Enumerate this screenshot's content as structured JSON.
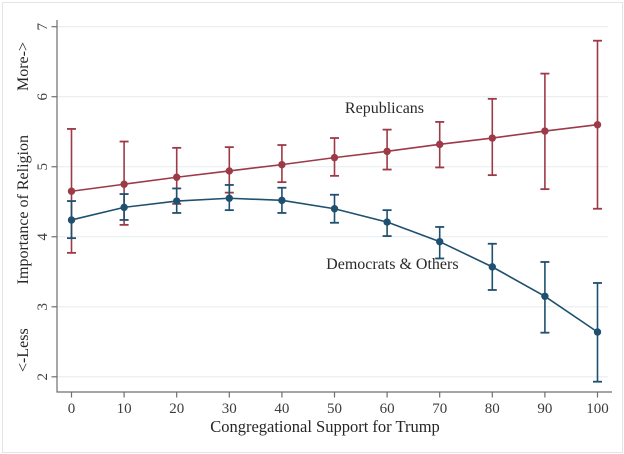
{
  "chart_data": {
    "type": "line",
    "x": [
      0,
      10,
      20,
      30,
      40,
      50,
      60,
      70,
      80,
      90,
      100
    ],
    "series": [
      {
        "name": "Republicans",
        "color": "#9c3a47",
        "values": [
          4.65,
          4.75,
          4.85,
          4.94,
          5.03,
          5.13,
          5.22,
          5.32,
          5.41,
          5.51,
          5.6
        ],
        "ci_high": [
          5.54,
          5.36,
          5.27,
          5.28,
          5.31,
          5.41,
          5.53,
          5.64,
          5.97,
          6.33,
          6.8
        ],
        "ci_low": [
          3.77,
          4.17,
          4.47,
          4.63,
          4.78,
          4.87,
          4.96,
          4.99,
          4.88,
          4.68,
          4.4
        ]
      },
      {
        "name": "Democrats & Others",
        "color": "#1f506f",
        "values": [
          4.24,
          4.42,
          4.51,
          4.55,
          4.52,
          4.4,
          4.21,
          3.93,
          3.57,
          3.15,
          2.64
        ],
        "ci_high": [
          4.51,
          4.61,
          4.69,
          4.74,
          4.7,
          4.6,
          4.38,
          4.14,
          3.9,
          3.64,
          3.34
        ],
        "ci_low": [
          3.98,
          4.24,
          4.34,
          4.38,
          4.34,
          4.2,
          4.01,
          3.69,
          3.24,
          2.63,
          1.93
        ]
      }
    ],
    "xlabel": "Congregational Support for Trump",
    "ylabel": "Importance of Religion",
    "ylabel_more_hint": "More->",
    "ylabel_less_hint": "<-Less",
    "xticks": [
      0,
      10,
      20,
      30,
      40,
      50,
      60,
      70,
      80,
      90,
      100
    ],
    "yticks": [
      2,
      3,
      4,
      5,
      6,
      7
    ],
    "xlim": [
      0,
      100
    ],
    "ylim": [
      2,
      7
    ],
    "grid": "horizontal-only",
    "legend_position": "inline-annotations",
    "annotations": [
      {
        "key": "republicans",
        "text": "Republicans",
        "x": 59.5,
        "y": 5.82
      },
      {
        "key": "democrats",
        "text": "Democrats & Others",
        "x": 61.0,
        "y": 3.6
      }
    ]
  },
  "colors": {
    "republicans": "#9c3a47",
    "democrats": "#1f506f",
    "grid": "#e6edf0",
    "axis": "#6f6f6f",
    "tick_text": "#3d3d3d",
    "border": "#e4e4e4"
  }
}
